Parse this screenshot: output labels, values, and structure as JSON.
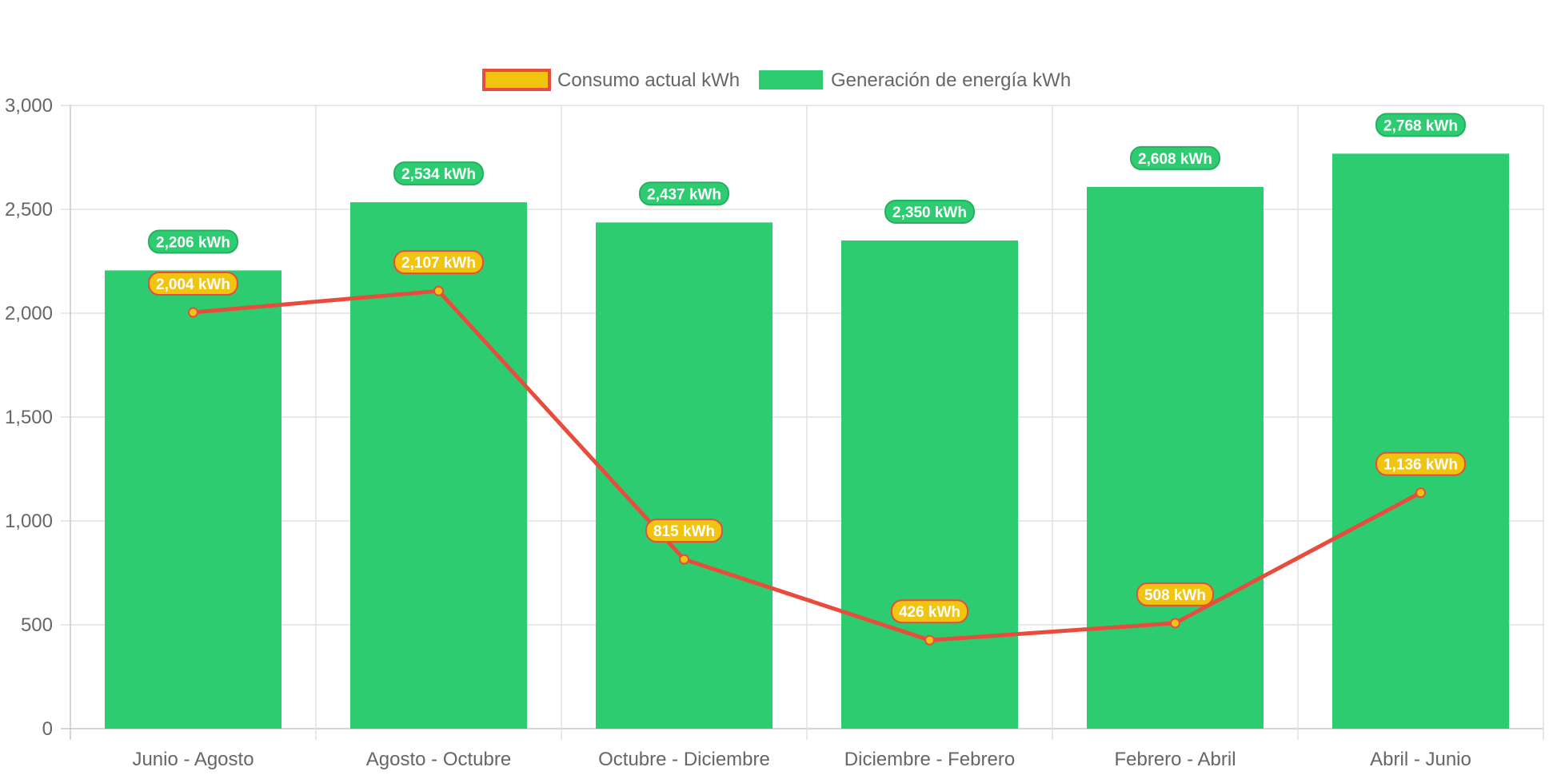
{
  "chart_data": {
    "type": "bar",
    "categories": [
      "Junio - Agosto",
      "Agosto - Octubre",
      "Octubre - Diciembre",
      "Diciembre - Febrero",
      "Febrero - Abril",
      "Abril - Junio"
    ],
    "series": [
      {
        "name": "Consumo actual kWh",
        "type": "line",
        "values": [
          2004,
          2107,
          815,
          426,
          508,
          1136
        ],
        "labels": [
          "2,004 kWh",
          "2,107 kWh",
          "815 kWh",
          "426 kWh",
          "508 kWh",
          "1,136 kWh"
        ],
        "color": "#E74C3C",
        "fill_color": "#F1C40F"
      },
      {
        "name": "Generación de energía kWh",
        "type": "bar",
        "values": [
          2206,
          2534,
          2437,
          2350,
          2608,
          2768
        ],
        "labels": [
          "2,206 kWh",
          "2,534 kWh",
          "2,437 kWh",
          "2,350 kWh",
          "2,608 kWh",
          "2,768 kWh"
        ],
        "color": "#2ECC71"
      }
    ],
    "ylim": [
      0,
      3000
    ],
    "yticks": [
      0,
      500,
      1000,
      1500,
      2000,
      2500,
      3000
    ],
    "ytick_labels": [
      "0",
      "500",
      "1,000",
      "1,500",
      "2,000",
      "2,500",
      "3,000"
    ],
    "title": "",
    "xlabel": "",
    "ylabel": "",
    "grid": true,
    "legend_position": "top"
  }
}
